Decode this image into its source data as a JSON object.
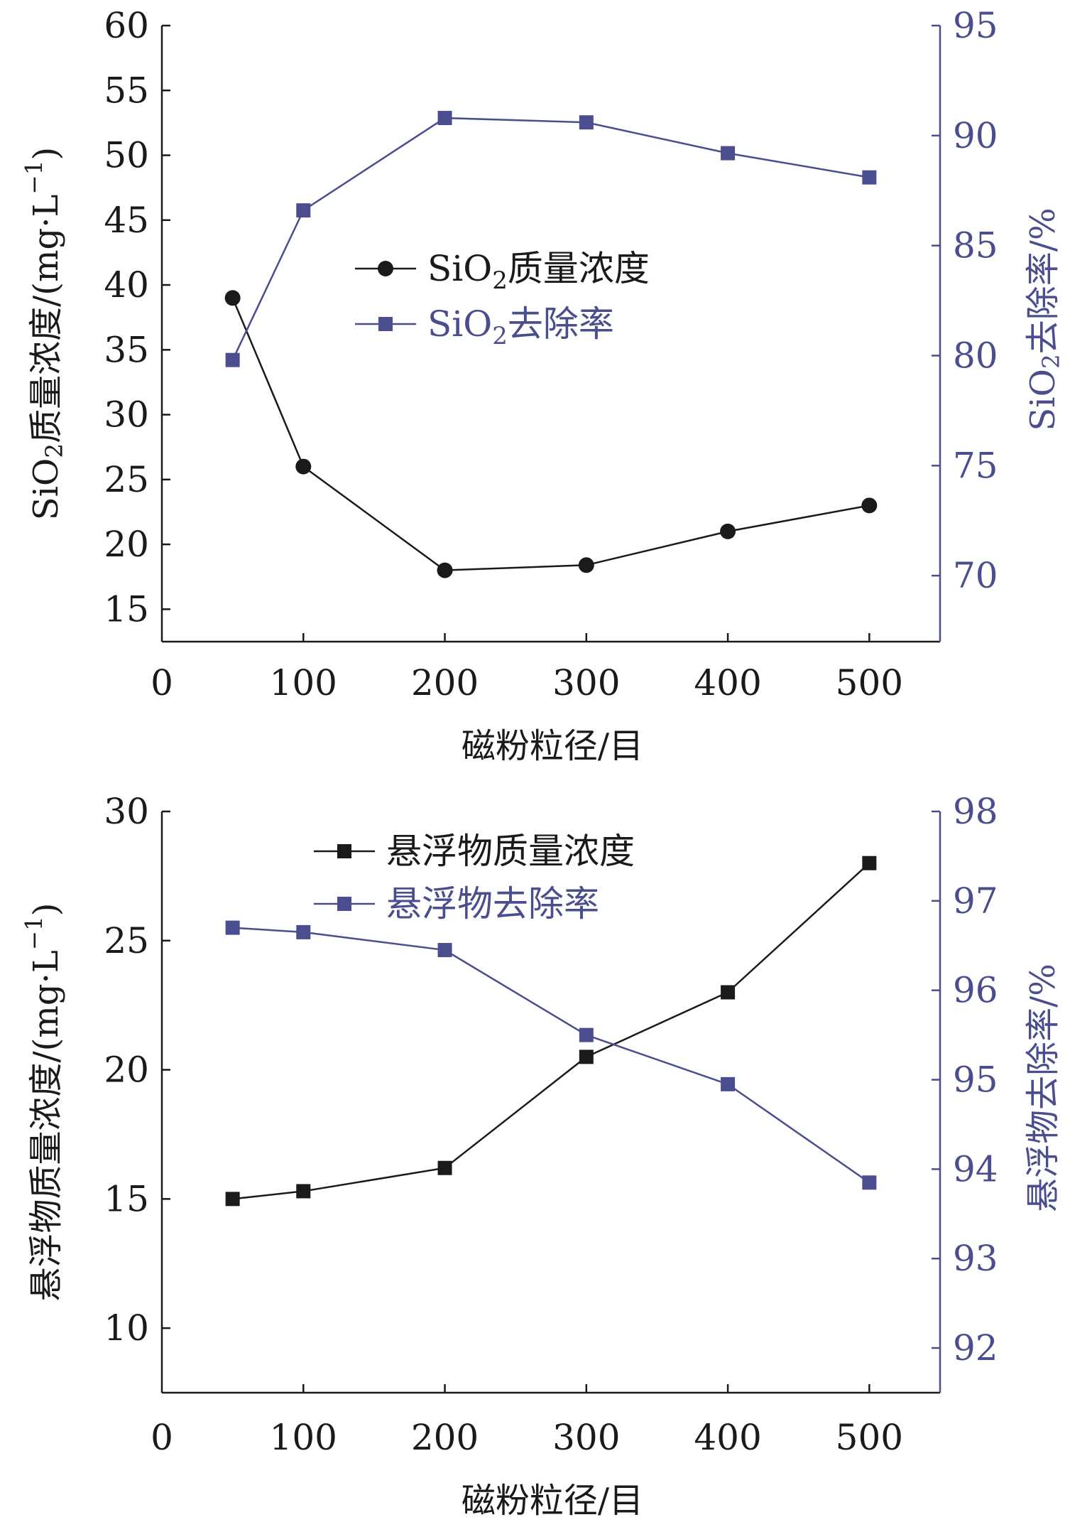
{
  "colors": {
    "black": "#1a1a1a",
    "navy": "#4a4e8e",
    "background": "#ffffff"
  },
  "chart_data": [
    {
      "type": "line",
      "xlabel": "磁粉粒径/目",
      "ylabel_left": {
        "main": "SiO",
        "sub": "2",
        "rest": "质量浓度/(mg·L",
        "sup": "−1",
        "close": ")"
      },
      "ylabel_right": {
        "main": "SiO",
        "sub": "2",
        "rest": "去除率/%"
      },
      "xlim": [
        0,
        550
      ],
      "xticks": [
        0,
        100,
        200,
        300,
        400,
        500
      ],
      "ylim_left": [
        12.5,
        60
      ],
      "yticks_left": [
        15,
        20,
        25,
        30,
        35,
        40,
        45,
        50,
        55,
        60
      ],
      "ylim_right": [
        67,
        95
      ],
      "yticks_right": [
        70,
        75,
        80,
        85,
        90,
        95
      ],
      "legend_position": "upper-center",
      "series": [
        {
          "name": {
            "main": "SiO",
            "sub": "2",
            "rest": "质量浓度"
          },
          "axis": "left",
          "marker": "circle",
          "color": "#1a1a1a",
          "x": [
            50,
            100,
            200,
            300,
            400,
            500
          ],
          "y": [
            39,
            26,
            18,
            18.4,
            21,
            23
          ]
        },
        {
          "name": {
            "main": "SiO",
            "sub": "2",
            "rest": "去除率"
          },
          "axis": "right",
          "marker": "square",
          "color": "#4a4e8e",
          "x": [
            50,
            100,
            200,
            300,
            400,
            500
          ],
          "y": [
            79.8,
            86.6,
            90.8,
            90.6,
            89.2,
            88.1
          ]
        }
      ]
    },
    {
      "type": "line",
      "xlabel": "磁粉粒径/目",
      "ylabel_left": {
        "main": "悬浮物质量浓度/(mg·L",
        "sup": "−1",
        "close": ")"
      },
      "ylabel_right": {
        "main": "悬浮物去除率/%"
      },
      "xlim": [
        0,
        550
      ],
      "xticks": [
        0,
        100,
        200,
        300,
        400,
        500
      ],
      "ylim_left": [
        7.5,
        30
      ],
      "yticks_left": [
        10,
        15,
        20,
        25,
        30
      ],
      "ylim_right": [
        91.5,
        98
      ],
      "yticks_right": [
        92,
        93,
        94,
        95,
        96,
        97,
        98
      ],
      "legend_position": "upper-center",
      "series": [
        {
          "name": {
            "main": "悬浮物质量浓度"
          },
          "axis": "left",
          "marker": "square",
          "color": "#1a1a1a",
          "x": [
            50,
            100,
            200,
            300,
            400,
            500
          ],
          "y": [
            15,
            15.3,
            16.2,
            20.5,
            23,
            28
          ]
        },
        {
          "name": {
            "main": "悬浮物去除率"
          },
          "axis": "right",
          "marker": "square",
          "color": "#4a4e8e",
          "x": [
            50,
            100,
            200,
            300,
            400,
            500
          ],
          "y": [
            96.7,
            96.65,
            96.45,
            95.5,
            94.95,
            93.85
          ]
        }
      ]
    }
  ]
}
